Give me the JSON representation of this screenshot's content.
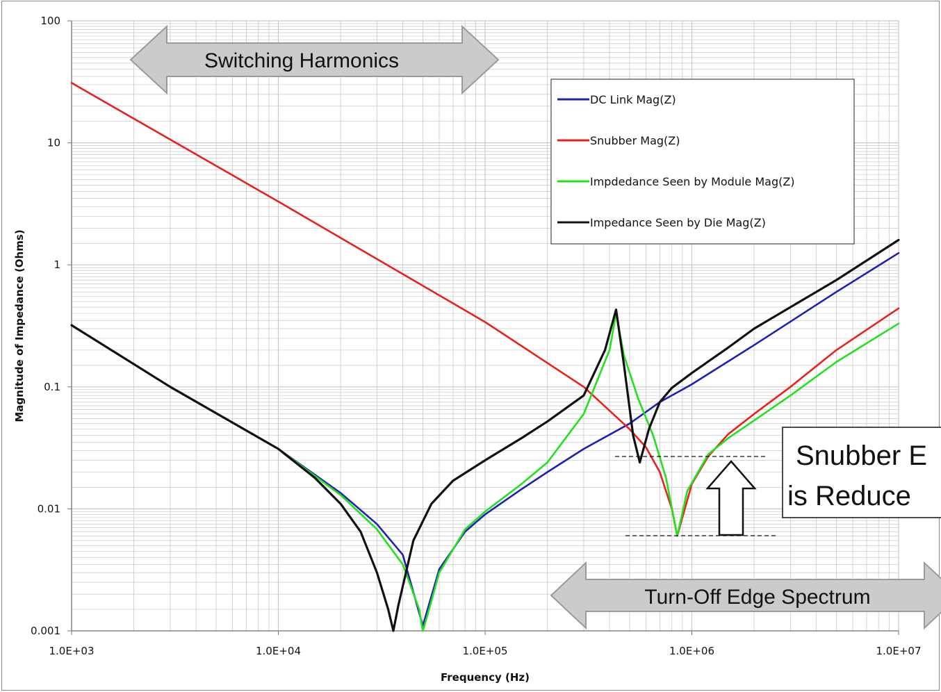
{
  "chart_data": {
    "type": "line",
    "title": "",
    "xlabel": "Frequency (Hz)",
    "ylabel": "Magnitude of Impedance (Ohms)",
    "xscale": "log",
    "yscale": "log",
    "xlim": [
      1000,
      10000000
    ],
    "ylim": [
      0.001,
      100
    ],
    "x_ticks": [
      {
        "v": 1000,
        "label": "1.0E+03"
      },
      {
        "v": 10000,
        "label": "1.0E+04"
      },
      {
        "v": 100000,
        "label": "1.0E+05"
      },
      {
        "v": 1000000,
        "label": "1.0E+06"
      },
      {
        "v": 10000000,
        "label": "1.0E+07"
      }
    ],
    "y_ticks": [
      {
        "v": 100,
        "label": "100"
      },
      {
        "v": 10,
        "label": "10"
      },
      {
        "v": 1,
        "label": "1"
      },
      {
        "v": 0.1,
        "label": "0.1"
      },
      {
        "v": 0.01,
        "label": "0.01"
      },
      {
        "v": 0.001,
        "label": "0.001"
      }
    ],
    "grid": true,
    "legend_position": "top-right",
    "series": [
      {
        "name": "DC Link Mag(Z)",
        "color": "#1f1fb4",
        "points": [
          [
            1000,
            0.32
          ],
          [
            3000,
            0.1
          ],
          [
            10000,
            0.031
          ],
          [
            20000,
            0.0135
          ],
          [
            30000,
            0.0075
          ],
          [
            40000,
            0.0042
          ],
          [
            50000,
            0.0011
          ],
          [
            60000,
            0.0032
          ],
          [
            80000,
            0.0065
          ],
          [
            100000,
            0.009
          ],
          [
            150000,
            0.0145
          ],
          [
            200000,
            0.02
          ],
          [
            300000,
            0.031
          ],
          [
            500000,
            0.05
          ],
          [
            700000,
            0.075
          ],
          [
            1000000,
            0.105
          ],
          [
            2000000,
            0.22
          ],
          [
            5000000,
            0.6
          ],
          [
            10000000,
            1.25
          ]
        ]
      },
      {
        "name": "Snubber Mag(Z)",
        "color": "#e8201e",
        "points": [
          [
            1000,
            31
          ],
          [
            10000,
            3.3
          ],
          [
            100000,
            0.34
          ],
          [
            300000,
            0.1
          ],
          [
            500000,
            0.045
          ],
          [
            600000,
            0.032
          ],
          [
            700000,
            0.02
          ],
          [
            800000,
            0.01
          ],
          [
            850000,
            0.006
          ],
          [
            900000,
            0.0085
          ],
          [
            1000000,
            0.016
          ],
          [
            1200000,
            0.027
          ],
          [
            1500000,
            0.041
          ],
          [
            2000000,
            0.06
          ],
          [
            3000000,
            0.1
          ],
          [
            5000000,
            0.2
          ],
          [
            10000000,
            0.44
          ]
        ]
      },
      {
        "name": "Impdedance Seen by  Module  Mag(Z)",
        "color": "#22e01e",
        "points": [
          [
            1000,
            0.32
          ],
          [
            3000,
            0.1
          ],
          [
            10000,
            0.031
          ],
          [
            20000,
            0.013
          ],
          [
            30000,
            0.0068
          ],
          [
            40000,
            0.0035
          ],
          [
            48000,
            0.0015
          ],
          [
            50000,
            0.001
          ],
          [
            53000,
            0.0014
          ],
          [
            60000,
            0.003
          ],
          [
            80000,
            0.0068
          ],
          [
            100000,
            0.0095
          ],
          [
            150000,
            0.016
          ],
          [
            200000,
            0.024
          ],
          [
            300000,
            0.06
          ],
          [
            400000,
            0.2
          ],
          [
            430000,
            0.4
          ],
          [
            470000,
            0.18
          ],
          [
            550000,
            0.08
          ],
          [
            650000,
            0.04
          ],
          [
            750000,
            0.018
          ],
          [
            850000,
            0.006
          ],
          [
            950000,
            0.014
          ],
          [
            1200000,
            0.028
          ],
          [
            1500000,
            0.038
          ],
          [
            2000000,
            0.053
          ],
          [
            3000000,
            0.085
          ],
          [
            5000000,
            0.16
          ],
          [
            10000000,
            0.33
          ]
        ]
      },
      {
        "name": "Impedance Seen by Die Mag(Z)",
        "color": "#111111",
        "points": [
          [
            1000,
            0.32
          ],
          [
            3000,
            0.1
          ],
          [
            10000,
            0.031
          ],
          [
            15000,
            0.018
          ],
          [
            20000,
            0.011
          ],
          [
            25000,
            0.0065
          ],
          [
            30000,
            0.003
          ],
          [
            34000,
            0.0015
          ],
          [
            36000,
            0.001
          ],
          [
            38000,
            0.0016
          ],
          [
            45000,
            0.0055
          ],
          [
            55000,
            0.011
          ],
          [
            70000,
            0.017
          ],
          [
            100000,
            0.025
          ],
          [
            150000,
            0.038
          ],
          [
            200000,
            0.052
          ],
          [
            300000,
            0.085
          ],
          [
            380000,
            0.2
          ],
          [
            430000,
            0.43
          ],
          [
            470000,
            0.15
          ],
          [
            520000,
            0.04
          ],
          [
            560000,
            0.024
          ],
          [
            620000,
            0.045
          ],
          [
            700000,
            0.075
          ],
          [
            800000,
            0.098
          ],
          [
            1000000,
            0.13
          ],
          [
            1500000,
            0.21
          ],
          [
            2000000,
            0.3
          ],
          [
            5000000,
            0.75
          ],
          [
            10000000,
            1.6
          ]
        ]
      }
    ]
  },
  "annotations": {
    "switching_harmonics": "Switching Harmonics",
    "turn_off_edge": "Turn-Off Edge Spectrum",
    "snubber_line1": "Snubber E",
    "snubber_line2": "is Reduce"
  },
  "colors": {
    "arrow_fill": "#cbcbcb",
    "arrow_stroke": "#9a9a9a",
    "grid": "#c8c8c8"
  }
}
